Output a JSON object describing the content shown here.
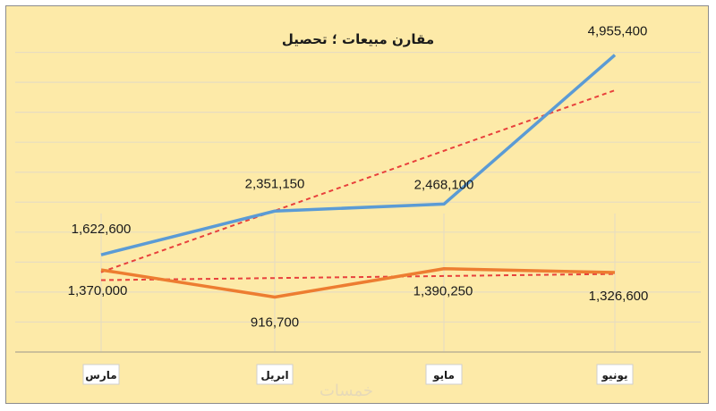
{
  "chart_data": {
    "type": "line",
    "title": "مقارن مبيعات ؛ تحصيل",
    "categories": [
      "مارس",
      "ابريل",
      "مايو",
      "يونيو"
    ],
    "series": [
      {
        "values": [
          1622600,
          2351150,
          2468100,
          4955400
        ],
        "labels": [
          "1,622,600",
          "2,351,150",
          "2,468,100",
          "4,955,400"
        ],
        "color": "#5b9bd5",
        "trendline": true,
        "trend_color": "#e8413c"
      },
      {
        "values": [
          1370000,
          916700,
          1390250,
          1326600
        ],
        "labels": [
          "1,370,000",
          "916,700",
          "1,390,250",
          "1,326,600"
        ],
        "color": "#ed7d31",
        "trendline": true,
        "trend_color": "#e8413c"
      }
    ],
    "xlabel": "",
    "ylabel": "",
    "ylim": [
      0,
      5500000
    ],
    "grid": true,
    "legend": "none"
  },
  "watermark": "خمسات"
}
